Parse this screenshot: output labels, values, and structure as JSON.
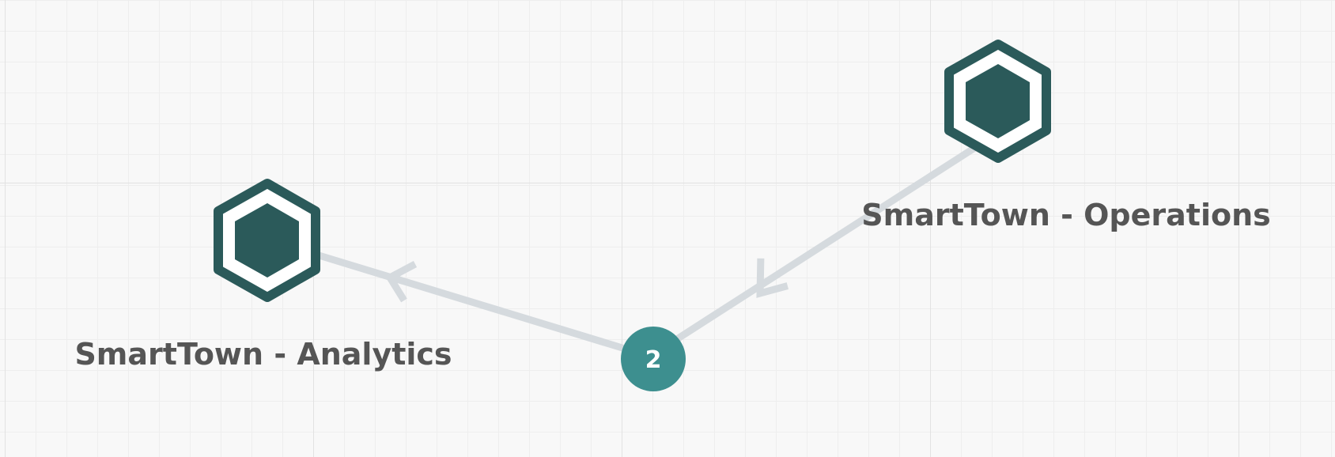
{
  "nodes": [
    {
      "id": "operations",
      "label": "SmartTown - Operations",
      "icon": "hexagon-node-icon"
    },
    {
      "id": "analytics",
      "label": "SmartTown - Analytics",
      "icon": "hexagon-node-icon"
    }
  ],
  "connector": {
    "count_label": "2"
  },
  "colors": {
    "node": "#2b5a5a",
    "badge": "#3d8f8f",
    "edge": "#d5dade",
    "label": "#555555"
  }
}
